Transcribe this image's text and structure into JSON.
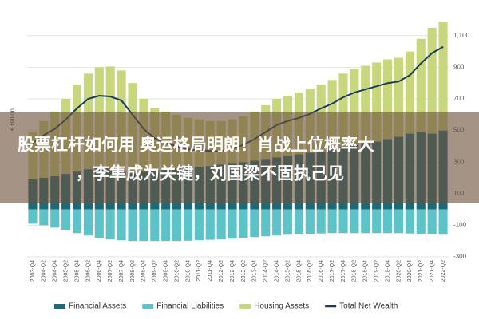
{
  "chart_data": {
    "type": "stacked-bar-line",
    "y_label": "€ Billion",
    "categories": [
      "2003-Q4",
      "2004-Q2",
      "2004-Q4",
      "2005-Q2",
      "2005-Q4",
      "2006-Q2",
      "2006-Q4",
      "2007-Q2",
      "2007-Q4",
      "2008-Q2",
      "2008-Q4",
      "2009-Q2",
      "2009-Q4",
      "2010-Q2",
      "2010-Q4",
      "2011-Q2",
      "2011-Q4",
      "2012-Q2",
      "2012-Q4",
      "2013-Q2",
      "2013-Q4",
      "2014-Q2",
      "2014-Q4",
      "2015-Q2",
      "2015-Q4",
      "2016-Q2",
      "2016-Q4",
      "2017-Q2",
      "2017-Q4",
      "2018-Q2",
      "2018-Q4",
      "2019-Q2",
      "2019-Q4",
      "2020-Q2",
      "2020-Q4",
      "2021-Q2",
      "2021-Q4",
      "2022-Q2"
    ],
    "series": [
      {
        "name": "Financial Assets",
        "color": "#1d6b7a",
        "kind": "bar",
        "values": [
          190,
          200,
          210,
          225,
          240,
          255,
          270,
          260,
          240,
          230,
          240,
          250,
          255,
          260,
          265,
          270,
          275,
          285,
          290,
          300,
          310,
          320,
          330,
          340,
          350,
          360,
          370,
          380,
          395,
          410,
          420,
          430,
          445,
          460,
          480,
          490,
          480,
          500
        ]
      },
      {
        "name": "Financial Liabilities",
        "color": "#5cc3c9",
        "kind": "bar",
        "values": [
          -90,
          -100,
          -115,
          -130,
          -150,
          -165,
          -180,
          -190,
          -195,
          -200,
          -200,
          -200,
          -200,
          -200,
          -198,
          -195,
          -192,
          -190,
          -185,
          -180,
          -175,
          -170,
          -165,
          -160,
          -158,
          -155,
          -152,
          -150,
          -150,
          -150,
          -150,
          -150,
          -150,
          -150,
          -152,
          -155,
          -158,
          -160
        ]
      },
      {
        "name": "Housing Assets",
        "color": "#c8d77c",
        "kind": "bar",
        "values": [
          300,
          360,
          410,
          475,
          550,
          605,
          630,
          645,
          640,
          570,
          460,
          390,
          365,
          340,
          315,
          300,
          285,
          275,
          280,
          290,
          310,
          340,
          370,
          380,
          390,
          400,
          420,
          440,
          465,
          480,
          490,
          500,
          505,
          500,
          520,
          590,
          670,
          690
        ]
      },
      {
        "name": "Total Net Wealth",
        "color": "#1c3d5a",
        "kind": "line",
        "values": [
          420,
          470,
          510,
          570,
          640,
          700,
          720,
          715,
          690,
          600,
          510,
          450,
          420,
          400,
          380,
          375,
          370,
          370,
          385,
          410,
          445,
          490,
          535,
          560,
          580,
          605,
          640,
          670,
          710,
          740,
          760,
          780,
          800,
          810,
          850,
          925,
          990,
          1030
        ]
      }
    ],
    "ylim": [
      -300,
      1200
    ],
    "yticks": [
      -300,
      -100,
      100,
      300,
      500,
      700,
      900,
      {
        "value": 1100,
        "label": "1,100"
      }
    ],
    "grid": true
  },
  "overlay": {
    "lines": [
      "股票杠杆如何用 奥运格局明朗！肖战上位概率大",
      "，李隼成为关键，刘国梁不固执己见"
    ]
  }
}
